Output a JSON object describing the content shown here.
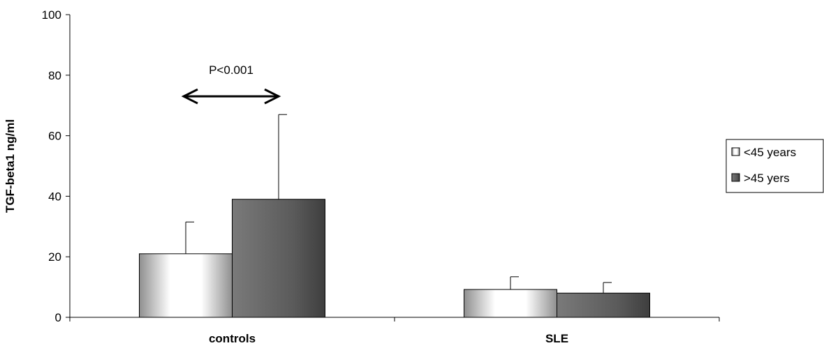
{
  "chart_data": {
    "type": "bar",
    "ylabel": "TGF-beta1 ng/ml",
    "ylim": [
      0,
      100
    ],
    "yticks": [
      0,
      20,
      40,
      60,
      80,
      100
    ],
    "categories": [
      "controls",
      "SLE"
    ],
    "series": [
      {
        "name": "<45 years",
        "values": [
          21,
          9.2
        ],
        "error": [
          10.5,
          4.2
        ],
        "gradient": [
          "#8f8f8f",
          "#ffffff",
          "#ffffff",
          "#8f8f8f"
        ]
      },
      {
        "name": ">45 yers",
        "values": [
          39,
          8
        ],
        "error": [
          28,
          3.5
        ],
        "gradient": [
          "#7a7a7a",
          "#6a6a6a",
          "#5a5a5a",
          "#3e3e3e"
        ]
      }
    ],
    "annotations": [
      {
        "text": "P<0.001",
        "category": "controls"
      }
    ],
    "legend_position": "right"
  }
}
